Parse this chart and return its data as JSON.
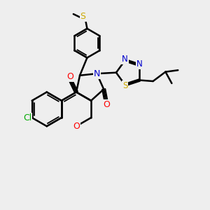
{
  "bg_color": "#eeeeee",
  "bond_color": "#000000",
  "bond_width": 1.8,
  "atom_colors": {
    "O": "#ff0000",
    "N": "#0000cc",
    "S": "#ccaa00",
    "Cl": "#00aa00",
    "C": "#000000"
  },
  "font_size": 9,
  "figsize": [
    3.0,
    3.0
  ],
  "dpi": 100
}
